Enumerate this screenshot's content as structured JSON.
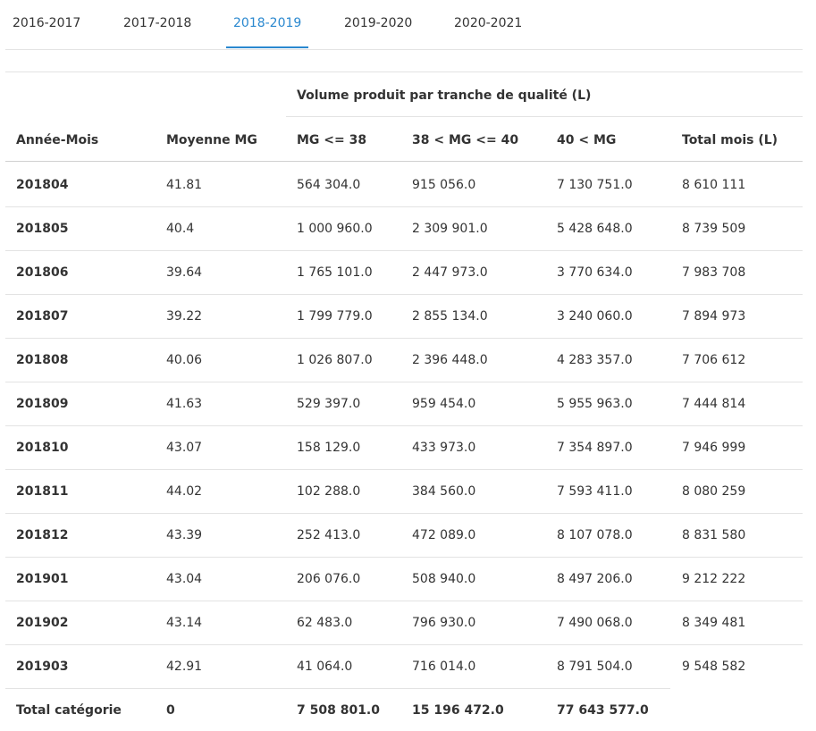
{
  "tabs": {
    "items": [
      "2016-2017",
      "2017-2018",
      "2018-2019",
      "2019-2020",
      "2020-2021"
    ],
    "active": 2
  },
  "table": {
    "group_header": "Volume produit par tranche de qualité (L)",
    "headers": [
      "Année-Mois",
      "Moyenne MG",
      "MG <= 38",
      "38 < MG <= 40",
      "40 < MG",
      "Total mois (L)"
    ],
    "rows": [
      [
        "201804",
        "41.81",
        "564 304.0",
        "915 056.0",
        "7 130 751.0",
        "8 610 111"
      ],
      [
        "201805",
        "40.4",
        "1 000 960.0",
        "2 309 901.0",
        "5 428 648.0",
        "8 739 509"
      ],
      [
        "201806",
        "39.64",
        "1 765 101.0",
        "2 447 973.0",
        "3 770 634.0",
        "7 983 708"
      ],
      [
        "201807",
        "39.22",
        "1 799 779.0",
        "2 855 134.0",
        "3 240 060.0",
        "7 894 973"
      ],
      [
        "201808",
        "40.06",
        "1 026 807.0",
        "2 396 448.0",
        "4 283 357.0",
        "7 706 612"
      ],
      [
        "201809",
        "41.63",
        "529 397.0",
        "959 454.0",
        "5 955 963.0",
        "7 444 814"
      ],
      [
        "201810",
        "43.07",
        "158 129.0",
        "433 973.0",
        "7 354 897.0",
        "7 946 999"
      ],
      [
        "201811",
        "44.02",
        "102 288.0",
        "384 560.0",
        "7 593 411.0",
        "8 080 259"
      ],
      [
        "201812",
        "43.39",
        "252 413.0",
        "472 089.0",
        "8 107 078.0",
        "8 831 580"
      ],
      [
        "201901",
        "43.04",
        "206 076.0",
        "508 940.0",
        "8 497 206.0",
        "9 212 222"
      ],
      [
        "201902",
        "43.14",
        "62 483.0",
        "796 930.0",
        "7 490 068.0",
        "8 349 481"
      ],
      [
        "201903",
        "42.91",
        "41 064.0",
        "716 014.0",
        "8 791 504.0",
        "9 548 582"
      ]
    ],
    "total": [
      "Total catégorie",
      "0",
      "7 508 801.0",
      "15 196 472.0",
      "77 643 577.0"
    ]
  }
}
